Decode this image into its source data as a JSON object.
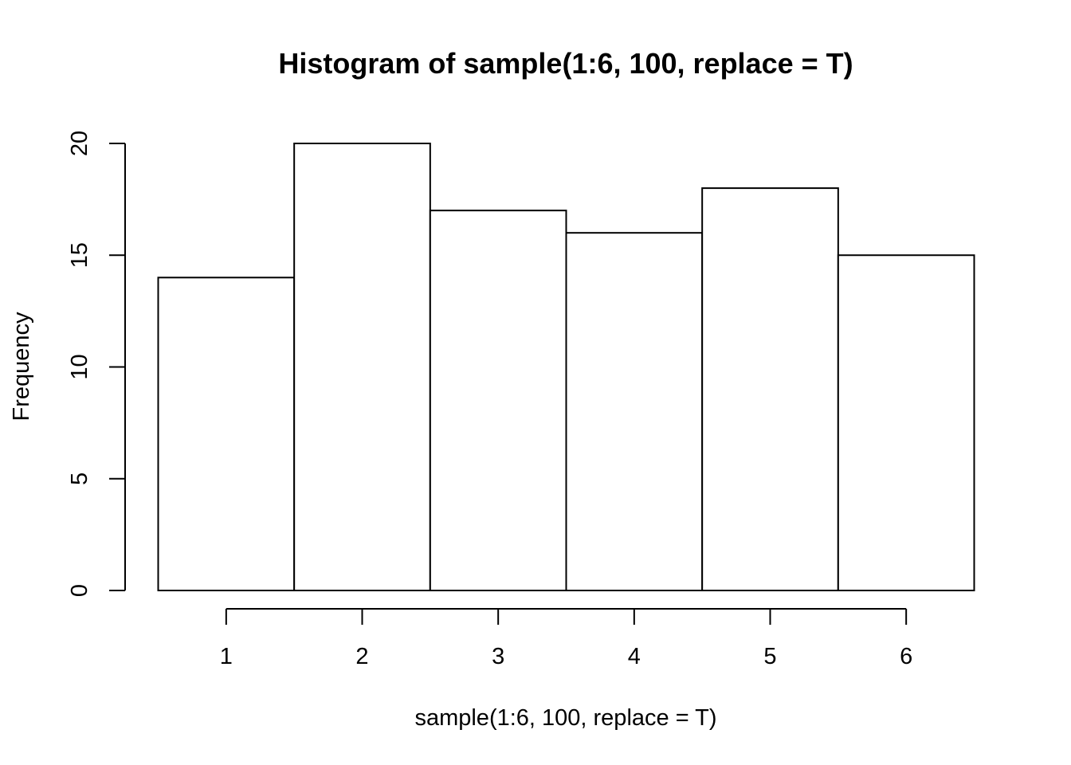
{
  "chart_data": {
    "type": "bar",
    "title": "Histogram of sample(1:6, 100, replace = T)",
    "xlabel": "sample(1:6, 100, replace = T)",
    "ylabel": "Frequency",
    "categories": [
      "1",
      "2",
      "3",
      "4",
      "5",
      "6"
    ],
    "values": [
      14,
      20,
      17,
      16,
      18,
      15
    ],
    "bins": [
      {
        "from": 0.5,
        "to": 1.5
      },
      {
        "from": 1.5,
        "to": 2.5
      },
      {
        "from": 2.5,
        "to": 3.5
      },
      {
        "from": 3.5,
        "to": 4.5
      },
      {
        "from": 4.5,
        "to": 5.5
      },
      {
        "from": 5.5,
        "to": 6.5
      }
    ],
    "xlim": [
      0.5,
      6.5
    ],
    "ylim": [
      0,
      20
    ],
    "x_ticks": [
      1,
      2,
      3,
      4,
      5,
      6
    ],
    "y_ticks": [
      0,
      5,
      10,
      15,
      20
    ],
    "grid": false,
    "legend": "none",
    "colors": {
      "bar_fill": "#ffffff",
      "bar_stroke": "#000000",
      "background": "#ffffff"
    }
  }
}
